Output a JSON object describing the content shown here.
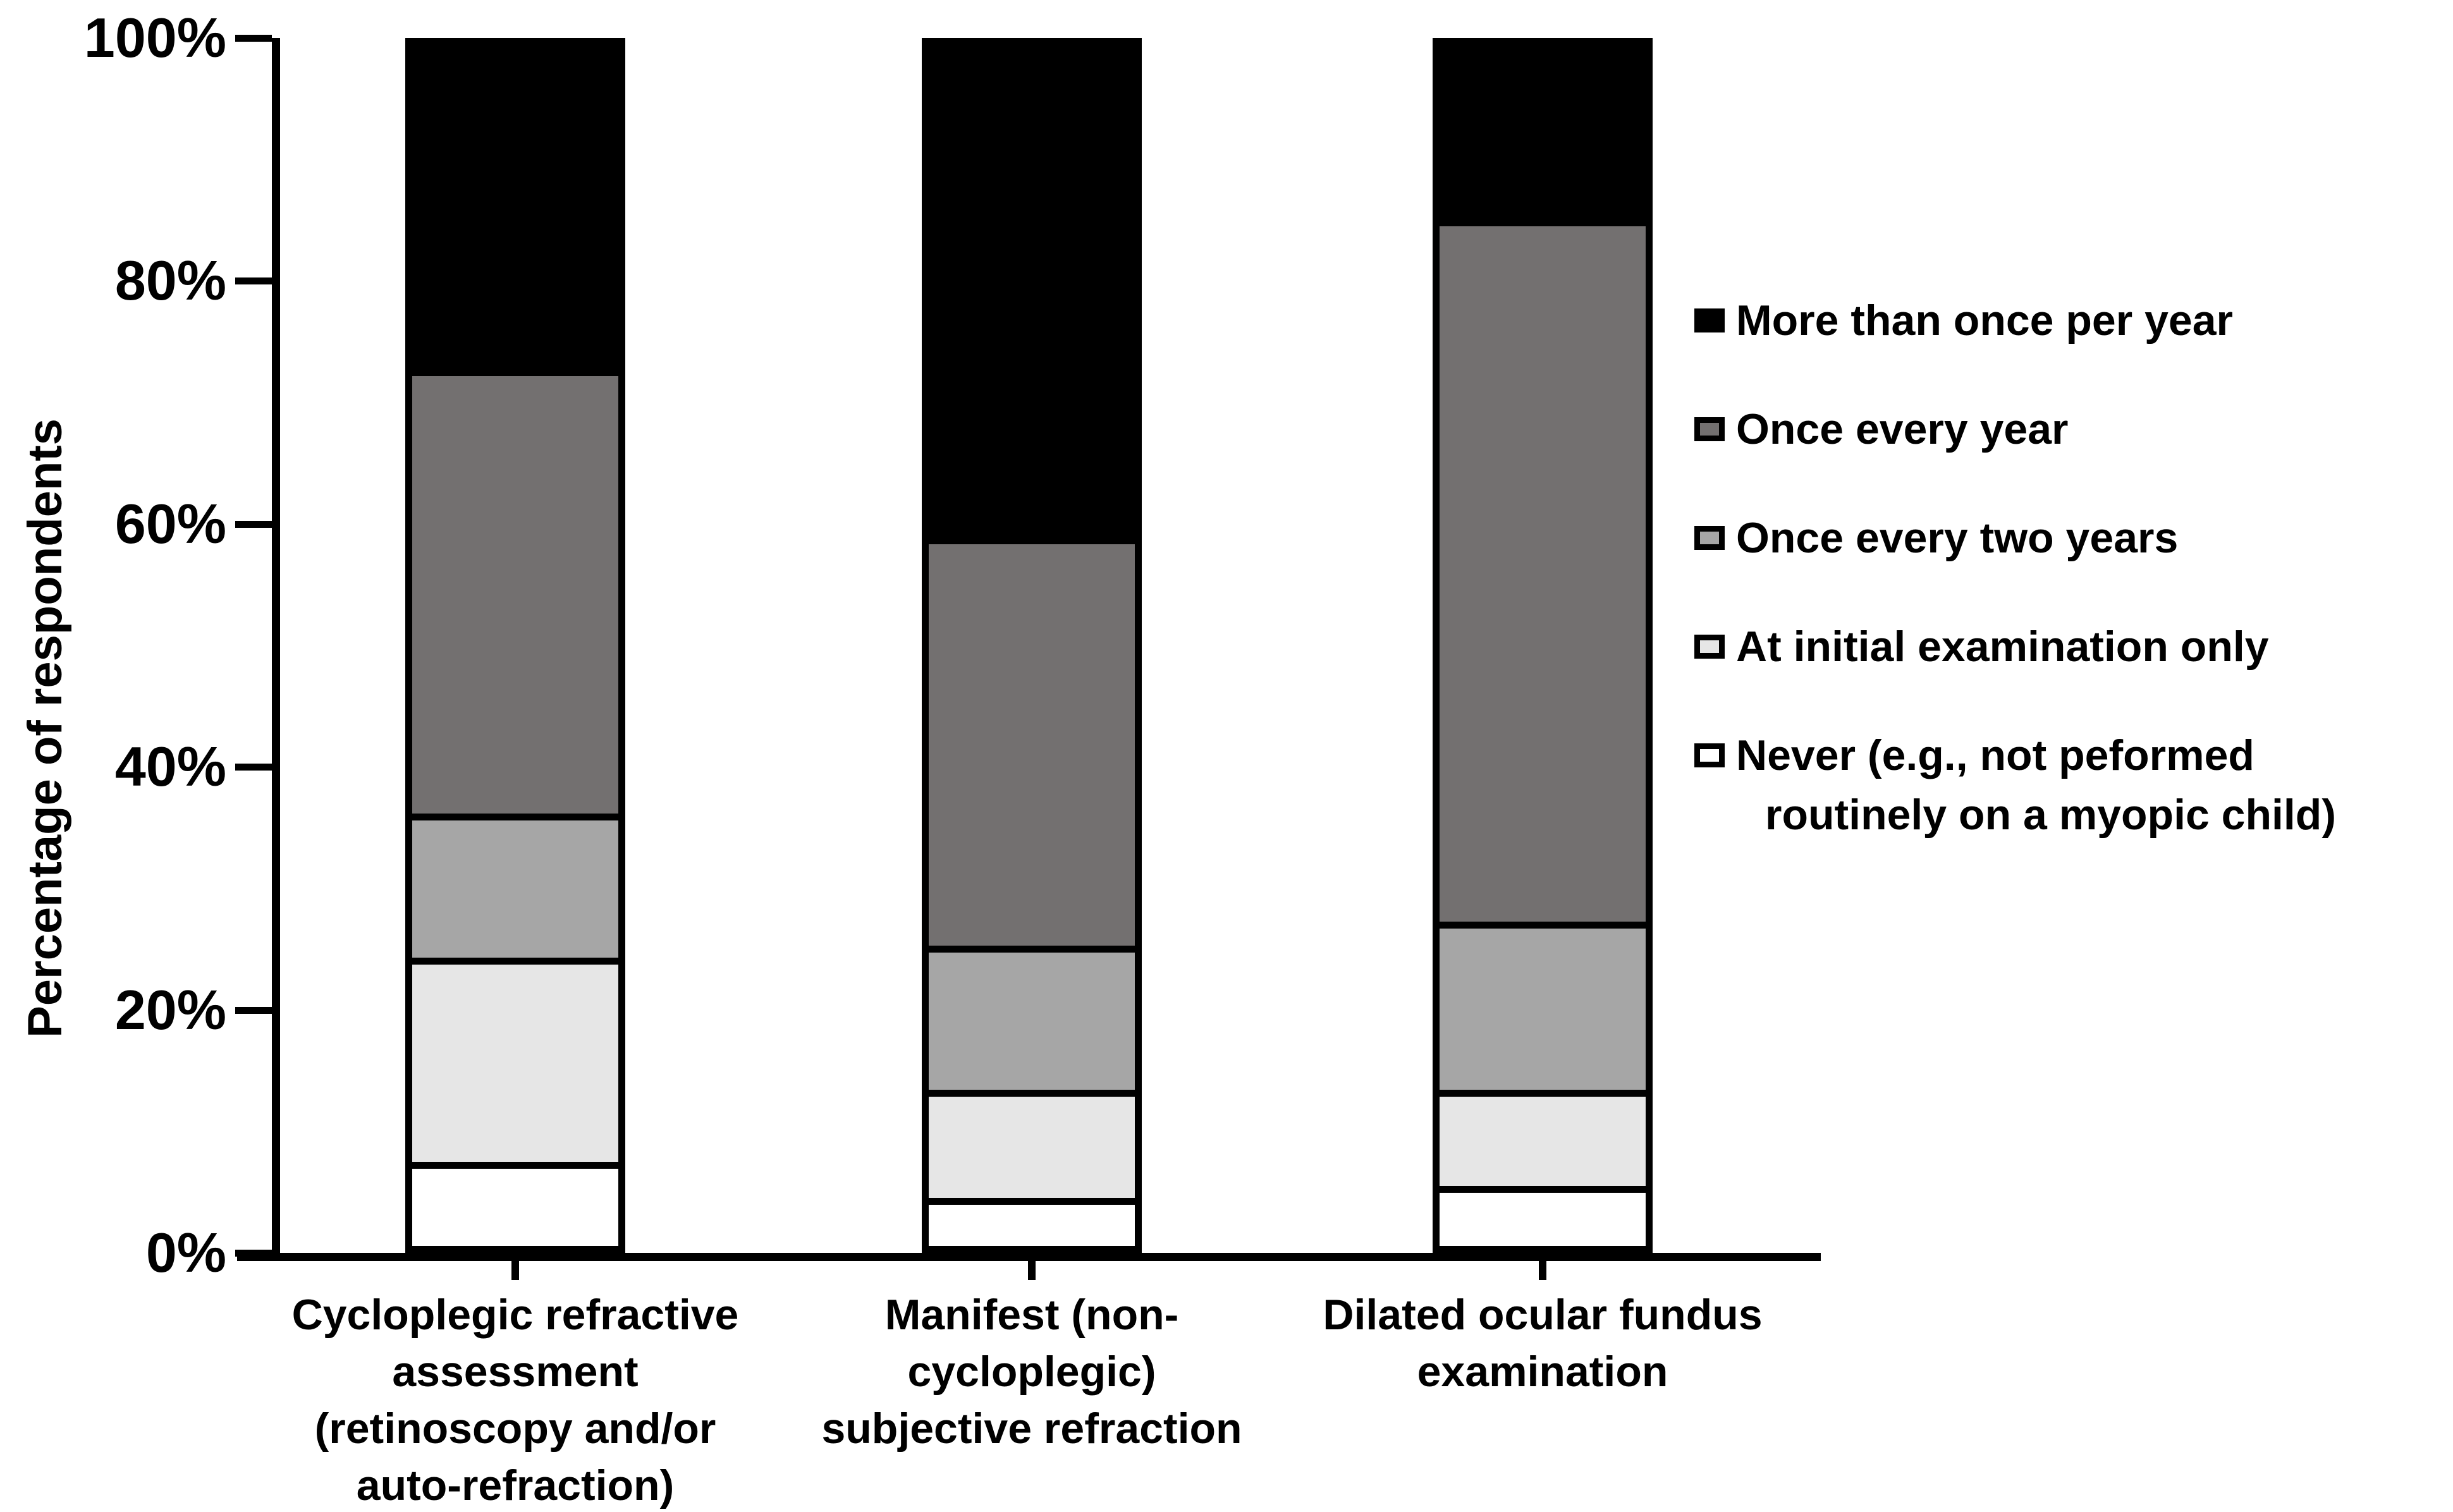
{
  "chart_data": {
    "type": "bar",
    "stacked": true,
    "ylabel": "Percentage of respondents",
    "xlabel": "",
    "ylim": [
      0,
      100
    ],
    "grid": false,
    "legend_position": "right",
    "y_ticks": [
      "0%",
      "20%",
      "40%",
      "60%",
      "80%",
      "100%"
    ],
    "categories": [
      "Cycloplegic refractive\nassessment\n(retinoscopy and/or\nauto-refraction)",
      "Manifest (non-\ncycloplegic)\nsubjective refraction",
      "Dilated ocular fundus\nexamination"
    ],
    "series": [
      {
        "name": "Never (e.g., not peformed routinely on a myopic child)",
        "color": "#ffffff",
        "values": [
          7,
          4,
          5
        ]
      },
      {
        "name": "At initial examination only",
        "color": "#e6e6e6",
        "values": [
          17,
          9,
          8
        ]
      },
      {
        "name": "Once every two years",
        "color": "#a6a6a6",
        "values": [
          12,
          12,
          14
        ]
      },
      {
        "name": "Once every year",
        "color": "#737070",
        "values": [
          37,
          34,
          58.5
        ]
      },
      {
        "name": "More than once per year",
        "color": "#000000",
        "values": [
          27,
          41,
          14.5
        ]
      }
    ]
  },
  "legend": {
    "items": [
      {
        "label": "More than once per year",
        "color": "#000000"
      },
      {
        "label": "Once every year",
        "color": "#737070"
      },
      {
        "label": "Once every two years",
        "color": "#a6a6a6"
      },
      {
        "label": "At initial examination only",
        "color": "#e6e6e6"
      },
      {
        "label": "Never (e.g., not peformed\nroutinely on a myopic child)",
        "color": "#ffffff"
      }
    ]
  }
}
